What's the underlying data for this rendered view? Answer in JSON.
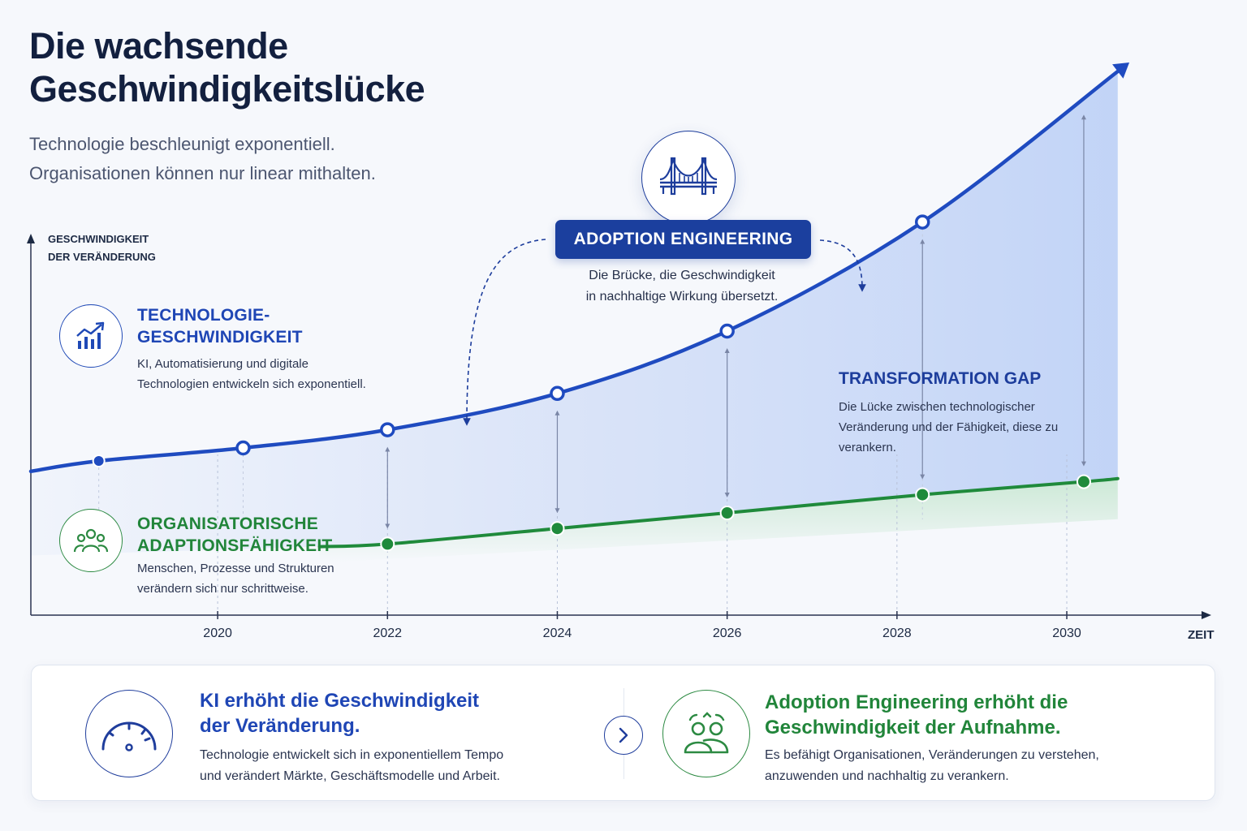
{
  "header": {
    "title_line1": "Die wachsende",
    "title_line2": "Geschwindigkeitslücke",
    "subtitle_line1": "Technologie beschleunigt exponentiell.",
    "subtitle_line2": "Organisationen können nur linear mithalten."
  },
  "legend": {
    "tech_title_line1": "TECHNOLOGIE-",
    "tech_title_line2": "GESCHWINDIGKEIT",
    "tech_text": "KI, Automatisierung und digitale Technologien entwickeln sich exponentiell.",
    "org_title_line1": "ORGANISATORISCHE",
    "org_title_line2": "ADAPTIONSFÄHIGKEIT",
    "org_text": "Menschen, Prozesse und Strukturen verändern sich nur schrittweise."
  },
  "annotations": {
    "adoption_label": "ADOPTION ENGINEERING",
    "adoption_desc_line1": "Die Brücke, die Geschwindigkeit",
    "adoption_desc_line2": "in nachhaltige Wirkung übersetzt.",
    "gap_title": "TRANSFORMATION GAP",
    "gap_text": "Die Lücke zwischen technologischer Veränderung und der Fähigkeit, diese zu verankern."
  },
  "icons": {
    "tech": "growth-chart-icon",
    "org": "people-group-icon",
    "bridge": "bridge-icon",
    "speed": "speedometer-icon",
    "team": "team-icon",
    "next": "chevron-right-icon"
  },
  "colors": {
    "tech_line": "#1f4bc0",
    "org_line": "#1f8a3b",
    "badge": "#1b3f9e"
  },
  "chart_data": {
    "type": "line",
    "title": "",
    "xlabel": "ZEIT",
    "ylabel_line1": "GESCHWINDIGKEIT",
    "ylabel_line2": "DER VERÄNDERUNG",
    "x_ticks": [
      2020,
      2022,
      2024,
      2026,
      2028,
      2030
    ],
    "xlim": [
      2017.8,
      2031.3
    ],
    "ylim": [
      0,
      100
    ],
    "y_ticks_shown": false,
    "grid": false,
    "series": [
      {
        "key": "technology",
        "x": [
          2017.8,
          2018.6,
          2020.3,
          2022,
          2024,
          2026,
          2028.3,
          2030.6
        ],
        "values": [
          23,
          25,
          27.5,
          31,
          38,
          50,
          71,
          100
        ],
        "markers_x": [
          2018.6,
          2020.3,
          2022,
          2024,
          2026,
          2028.3
        ]
      },
      {
        "key": "organization",
        "x": [
          2021.2,
          2022,
          2024,
          2026,
          2028.3,
          2030.2,
          2030.6
        ],
        "values": [
          8.5,
          9,
          12,
          15,
          18.5,
          21,
          21.6
        ],
        "markers_x": [
          2022,
          2024,
          2026,
          2028.3,
          2030.2
        ]
      }
    ],
    "gap_markers_x": [
      2022,
      2024,
      2026,
      2028.3,
      2030.2
    ]
  },
  "bottom": {
    "card1_title_line1": "KI erhöht die Geschwindigkeit",
    "card1_title_line2": "der Veränderung.",
    "card1_text_line1": "Technologie entwickelt sich in exponentiellem Tempo",
    "card1_text_line2": "und verändert Märkte, Geschäftsmodelle und Arbeit.",
    "card2_title_line1": "Adoption Engineering erhöht die",
    "card2_title_line2": "Geschwindigkeit der Aufnahme.",
    "card2_text_line1": "Es befähigt Organisationen, Veränderungen zu verstehen,",
    "card2_text_line2": "anzuwenden und nachhaltig zu verankern."
  }
}
